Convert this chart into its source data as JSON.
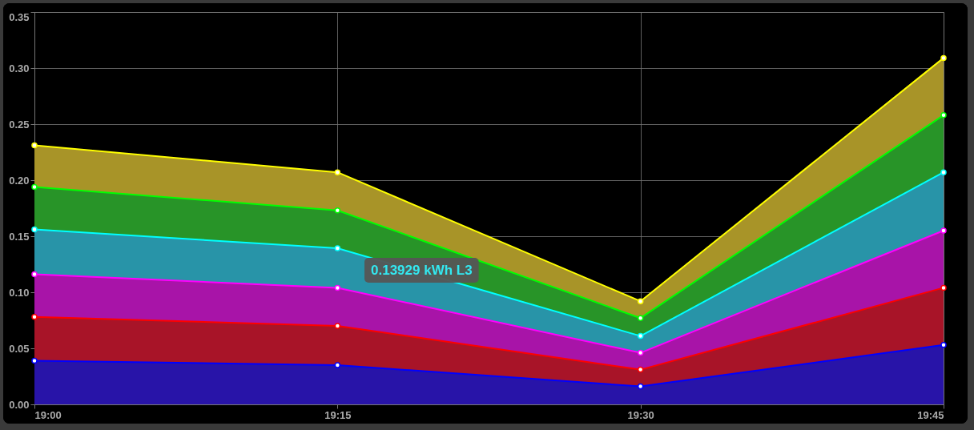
{
  "chart_data": {
    "type": "area",
    "x": [
      19,
      19.25,
      19.5,
      19.75
    ],
    "series": [
      {
        "color": "#0000ff",
        "values": [
          0.039,
          0.035,
          0.016,
          0.053
        ]
      },
      {
        "color": "#ff0000",
        "values": [
          0.078,
          0.07,
          0.031,
          0.104
        ]
      },
      {
        "color": "#ff00ff",
        "values": [
          0.116,
          0.104,
          0.046,
          0.155
        ]
      },
      {
        "color": "#00ffff",
        "values": [
          0.156,
          0.13929,
          0.061,
          0.207
        ]
      },
      {
        "color": "#00ff00",
        "values": [
          0.194,
          0.173,
          0.077,
          0.258
        ]
      },
      {
        "color": "#ffff00",
        "values": [
          0.231,
          0.207,
          0.092,
          0.309
        ]
      }
    ],
    "xlim": [
      19,
      19.75
    ],
    "xticks": [
      {
        "value": 19,
        "label": "19:00"
      },
      {
        "value": 19.25,
        "label": "19:15"
      },
      {
        "value": 19.5,
        "label": "19:30"
      },
      {
        "value": 19.75,
        "label": "19:45"
      }
    ],
    "ylim": [
      0,
      0.35
    ],
    "yticks": [
      {
        "value": 0,
        "label": "0.00"
      },
      {
        "value": 0.05,
        "label": "0.05"
      },
      {
        "value": 0.1,
        "label": "0.10"
      },
      {
        "value": 0.15,
        "label": "0.15"
      },
      {
        "value": 0.2,
        "label": "0.20"
      },
      {
        "value": 0.25,
        "label": "0.25"
      },
      {
        "value": 0.3,
        "label": "0.30"
      },
      {
        "value": 0.35,
        "label": "0.35"
      }
    ],
    "grid": true,
    "marker": "circle",
    "annotations": [
      {
        "text": "0.13929 kWh L3",
        "x": 19.25,
        "y": 0.13929
      }
    ]
  }
}
